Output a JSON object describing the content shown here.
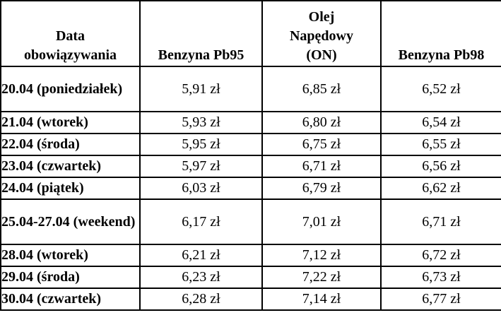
{
  "table": {
    "headers": {
      "date": "Data obowiązywania",
      "pb95": "Benzyna Pb95",
      "on": "Olej Napędowy (ON)",
      "pb98": "Benzyna Pb98"
    },
    "rows": [
      {
        "date": "20.04 (poniedziałek)",
        "pb95": "5,91 zł",
        "on": "6,85 zł",
        "pb98": "6,52 zł"
      },
      {
        "date": "21.04 (wtorek)",
        "pb95": "5,93 zł",
        "on": "6,80 zł",
        "pb98": "6,54 zł"
      },
      {
        "date": "22.04 (środa)",
        "pb95": "5,95 zł",
        "on": "6,75 zł",
        "pb98": "6,55 zł"
      },
      {
        "date": "23.04 (czwartek)",
        "pb95": "5,97 zł",
        "on": "6,71 zł",
        "pb98": "6,56 zł"
      },
      {
        "date": "24.04 (piątek)",
        "pb95": "6,03 zł",
        "on": "6,79 zł",
        "pb98": "6,62 zł"
      },
      {
        "date": "25.04-27.04 (weekend)",
        "pb95": "6,17 zł",
        "on": "7,01 zł",
        "pb98": "6,71 zł"
      },
      {
        "date": "28.04 (wtorek)",
        "pb95": "6,21 zł",
        "on": "7,12 zł",
        "pb98": "6,72 zł"
      },
      {
        "date": "29.04 (środa)",
        "pb95": "6,23 zł",
        "on": "7,22 zł",
        "pb98": "6,73 zł"
      },
      {
        "date": "30.04 (czwartek)",
        "pb95": "6,28 zł",
        "on": "7,14 zł",
        "pb98": "6,77 zł"
      }
    ]
  },
  "colors": {
    "border": "#000000",
    "background": "#ffffff",
    "text": "#000000"
  }
}
